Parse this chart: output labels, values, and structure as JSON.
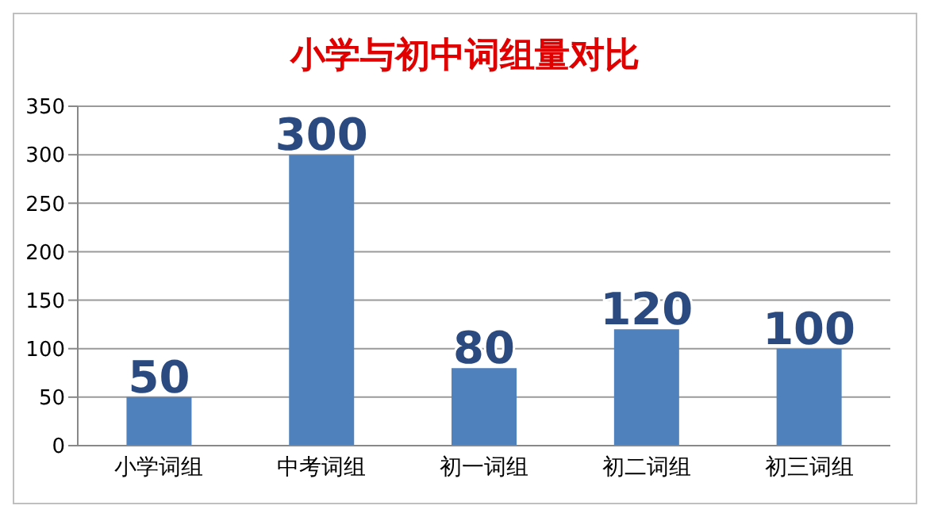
{
  "chart_data": {
    "type": "bar",
    "title": "小学与初中词组量对比",
    "categories": [
      "小学词组",
      "中考词组",
      "初一词组",
      "初二词组",
      "初三词组"
    ],
    "values": [
      50,
      300,
      80,
      120,
      100
    ],
    "color": "#4f81bd",
    "ylim": [
      0,
      350
    ],
    "yticks": [
      0,
      50,
      100,
      150,
      200,
      250,
      300,
      350
    ],
    "grid": "y",
    "data_labels": true
  }
}
